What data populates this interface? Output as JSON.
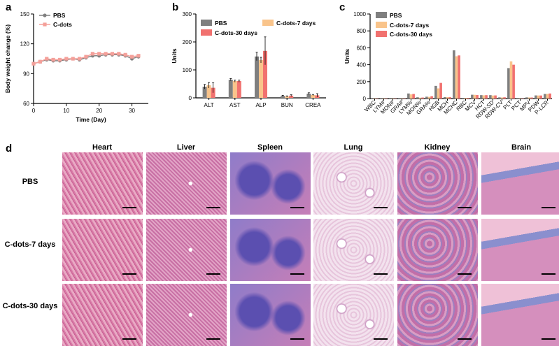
{
  "panels": {
    "a": "a",
    "b": "b",
    "c": "c",
    "d": "d"
  },
  "colors": {
    "pbs": "#7f7f7f",
    "cdots7": "#f9c48b",
    "cdots30": "#f1716f",
    "pbs_line": "#808080",
    "cdots_line": "#f4a09a"
  },
  "chart_data": [
    {
      "type": "line",
      "xlabel": "Time (Day)",
      "ylabel": "Body weight change (%)",
      "xlim": [
        0,
        35
      ],
      "ylim": [
        60,
        150
      ],
      "xticks": [
        0,
        10,
        20,
        30
      ],
      "yticks": [
        60,
        90,
        120,
        150
      ],
      "legend": "top-left",
      "series": [
        {
          "name": "PBS",
          "x": [
            0,
            2,
            4,
            6,
            8,
            10,
            12,
            14,
            16,
            18,
            20,
            22,
            24,
            26,
            28,
            30,
            32
          ],
          "y": [
            100,
            102,
            104,
            103,
            103,
            104,
            105,
            104,
            106,
            108,
            108,
            109,
            109,
            109,
            108,
            105,
            107
          ]
        },
        {
          "name": "C-dots",
          "x": [
            0,
            2,
            4,
            6,
            8,
            10,
            12,
            14,
            16,
            18,
            20,
            22,
            24,
            26,
            28,
            30,
            32
          ],
          "y": [
            100,
            102,
            105,
            104,
            104,
            105,
            105,
            105,
            107,
            110,
            110,
            110,
            110,
            110,
            109,
            107,
            108
          ]
        }
      ]
    },
    {
      "type": "bar",
      "ylabel": "Units",
      "ylim": [
        0,
        300
      ],
      "yticks": [
        0,
        100,
        200,
        300
      ],
      "categories": [
        "ALT",
        "AST",
        "ALP",
        "BUN",
        "CREA"
      ],
      "legend": "top",
      "series": [
        {
          "name": "PBS",
          "values": [
            40,
            65,
            148,
            7,
            15
          ]
        },
        {
          "name": "C-dots-7 days",
          "values": [
            45,
            60,
            135,
            5,
            10
          ]
        },
        {
          "name": "C-dots-30 days",
          "values": [
            36,
            60,
            168,
            8,
            9
          ]
        }
      ],
      "errors": [
        [
          8,
          4,
          15,
          2,
          3
        ],
        [
          10,
          4,
          10,
          2,
          2
        ],
        [
          18,
          4,
          50,
          3,
          6
        ]
      ]
    },
    {
      "type": "bar",
      "ylabel": "Units",
      "ylim": [
        0,
        1000
      ],
      "yticks": [
        0,
        200,
        400,
        600,
        800,
        1000
      ],
      "categories": [
        "WBC",
        "LYM#",
        "MON#",
        "GRA#",
        "LYM%",
        "MON%",
        "GRA%",
        "HGB",
        "MCH",
        "MCHC",
        "RBC",
        "MCV",
        "HCT",
        "RDW-SD",
        "RDW-CV",
        "PLT",
        "PCT",
        "MPV",
        "PDW",
        "P-LCR"
      ],
      "legend": "top-left",
      "series": [
        {
          "name": "PBS",
          "values": [
            3,
            3,
            1,
            2,
            60,
            15,
            22,
            150,
            17,
            570,
            8,
            45,
            40,
            40,
            14,
            360,
            2,
            14,
            37,
            55
          ]
        },
        {
          "name": "C-dots-7 days",
          "values": [
            3,
            2,
            1,
            2,
            50,
            10,
            20,
            120,
            17,
            500,
            8,
            44,
            38,
            36,
            13,
            440,
            2,
            13,
            36,
            55
          ]
        },
        {
          "name": "C-dots-30 days",
          "values": [
            2,
            2,
            1,
            2,
            55,
            12,
            28,
            185,
            16,
            510,
            8,
            42,
            40,
            37,
            15,
            400,
            2,
            12,
            36,
            60
          ]
        }
      ]
    }
  ],
  "histology": {
    "columns": [
      "Heart",
      "Liver",
      "Spleen",
      "Lung",
      "Kidney",
      "Brain"
    ],
    "rows": [
      "PBS",
      "C-dots-7 days",
      "C-dots-30 days"
    ]
  }
}
